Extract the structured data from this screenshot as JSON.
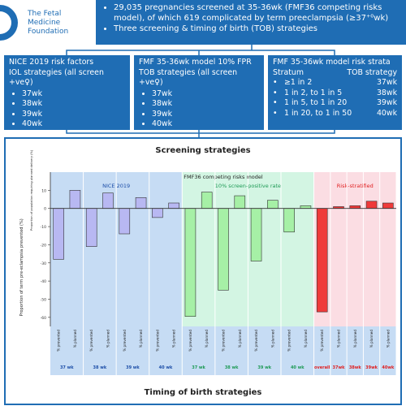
{
  "header": {
    "logo": [
      "The Fetal",
      "Medicine Foundation"
    ],
    "bullets": [
      "29,035 pregnancies screened at 35-36wk (FMF36 competing risks model), of which 619 complicated by term preeclampsia (≥37⁺⁰wk)",
      "Three screening & timing of birth (TOB) strategies"
    ]
  },
  "strategies": [
    {
      "title": "NICE 2019 risk factors",
      "subtitle": "IOL strategies (all screen +ve♀)",
      "items": [
        "37wk",
        "38wk",
        "39wk",
        "40wk"
      ]
    },
    {
      "title": "FMF 35-36wk model 10% FPR",
      "subtitle": "TOB strategies (all screen +ve♀)",
      "items": [
        "37wk",
        "38wk",
        "39wk",
        "40wk"
      ]
    },
    {
      "title": "FMF 35-36wk model risk strata",
      "columns": [
        "Stratum",
        "TOB strategy"
      ],
      "rows": [
        [
          "≥1 in 2",
          "37wk"
        ],
        [
          "1 in 2, to 1 in 5",
          "38wk"
        ],
        [
          "1 in 5, to 1 in 20",
          "39wk"
        ],
        [
          "1 in 20, to 1 in 50",
          "40wk"
        ]
      ]
    }
  ],
  "chart_data": {
    "type": "bar",
    "title": "Screening strategies",
    "x_title": "Timing of birth strategies",
    "y_titles": [
      "Proportion of population requiring planned delivery (%)",
      "Proportion of term pre-eclampsia prevented (%)"
    ],
    "supertitle": "FMF36 competing risks model",
    "ylim": [
      -65,
      20
    ],
    "yticks": [
      -60,
      -50,
      -40,
      -30,
      -20,
      -10,
      0,
      10
    ],
    "sections": [
      {
        "name": "NICE 2019",
        "background": "#c6dcf4",
        "color": "#b8b8f2",
        "label_color": "#1e4fa8",
        "groups": [
          {
            "label": "37 wk",
            "bars": [
              {
                "label": "% prevented",
                "value": -28
              },
              {
                "label": "% planned",
                "value": 10
              }
            ]
          },
          {
            "label": "38 wk",
            "bars": [
              {
                "label": "% prevented",
                "value": -21
              },
              {
                "label": "% planned",
                "value": 8.5
              }
            ]
          },
          {
            "label": "39 wk",
            "bars": [
              {
                "label": "% prevented",
                "value": -14
              },
              {
                "label": "% planned",
                "value": 6
              }
            ]
          },
          {
            "label": "40 wk",
            "bars": [
              {
                "label": "% prevented",
                "value": -5
              },
              {
                "label": "% planned",
                "value": 3
              }
            ]
          }
        ]
      },
      {
        "name": "10% screen-positive rate",
        "background": "#d3f5e3",
        "color": "#a6f0a6",
        "label_color": "#1e9a55",
        "groups": [
          {
            "label": "37 wk",
            "bars": [
              {
                "label": "% prevented",
                "value": -59.5
              },
              {
                "label": "% planned",
                "value": 9
              }
            ]
          },
          {
            "label": "38 wk",
            "bars": [
              {
                "label": "% prevented",
                "value": -45
              },
              {
                "label": "% planned",
                "value": 7
              }
            ]
          },
          {
            "label": "39 wk",
            "bars": [
              {
                "label": "% prevented",
                "value": -29
              },
              {
                "label": "% planned",
                "value": 4.5
              }
            ]
          },
          {
            "label": "40 wk",
            "bars": [
              {
                "label": "% prevented",
                "value": -13
              },
              {
                "label": "% planned",
                "value": 1.5
              }
            ]
          }
        ]
      },
      {
        "name": "Risk-stratified",
        "background": "#fbdde3",
        "color": "#ef3a3a",
        "label_color": "#e02020",
        "groups": [
          {
            "label": "overall",
            "bars": [
              {
                "label": "% prevented",
                "value": -57
              }
            ]
          },
          {
            "label": "37wk",
            "bars": [
              {
                "label": "% planned",
                "value": 1
              }
            ]
          },
          {
            "label": "38wk",
            "bars": [
              {
                "label": "% planned",
                "value": 1.5
              }
            ]
          },
          {
            "label": "39wk",
            "bars": [
              {
                "label": "% planned",
                "value": 4
              }
            ]
          },
          {
            "label": "40wk",
            "bars": [
              {
                "label": "% planned",
                "value": 3
              }
            ]
          }
        ]
      }
    ]
  }
}
